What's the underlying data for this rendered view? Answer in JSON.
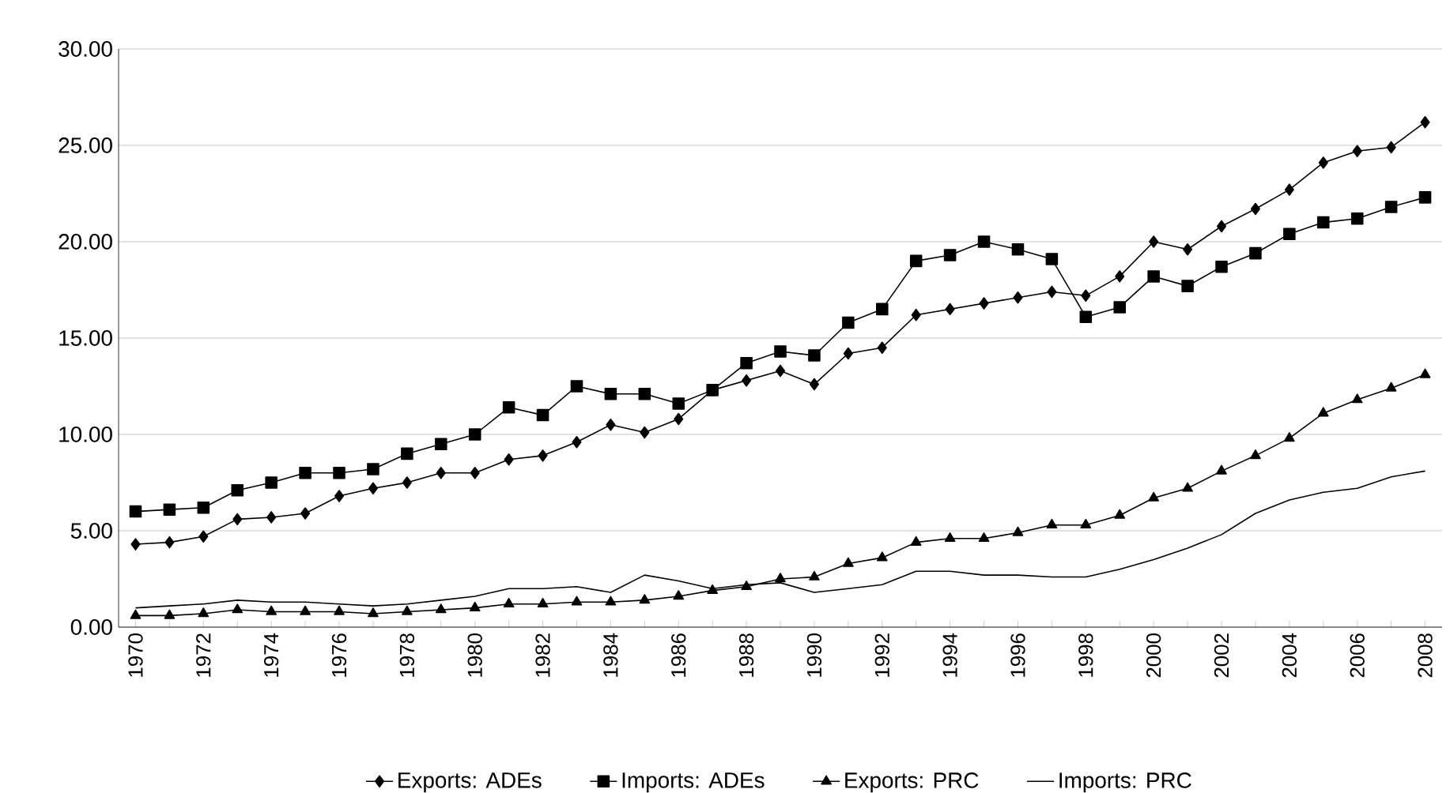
{
  "chart_data": {
    "type": "line",
    "categories": [
      "1970",
      null,
      "1972",
      null,
      "1974",
      null,
      "1976",
      null,
      "1978",
      null,
      "1980",
      null,
      "1982",
      null,
      "1984",
      null,
      "1986",
      null,
      "1988",
      null,
      "1990",
      null,
      "1992",
      null,
      "1994",
      null,
      "1996",
      null,
      "1998",
      null,
      "2000",
      null,
      "2002",
      null,
      "2004",
      null,
      "2006",
      null,
      "2008"
    ],
    "series": [
      {
        "name": "Exports: ADEs",
        "color": "#000000",
        "marker": "diamond",
        "values": [
          4.3,
          4.4,
          4.7,
          5.6,
          5.7,
          5.9,
          6.8,
          7.2,
          7.5,
          8.0,
          8.0,
          8.7,
          8.9,
          9.6,
          10.5,
          10.1,
          10.8,
          12.3,
          12.8,
          13.3,
          12.6,
          14.2,
          14.5,
          16.2,
          16.5,
          16.8,
          17.1,
          17.4,
          17.2,
          18.2,
          20.0,
          19.6,
          20.8,
          21.7,
          22.7,
          24.1,
          24.7,
          24.9,
          26.2
        ]
      },
      {
        "name": "Imports: ADEs",
        "color": "#000000",
        "marker": "square",
        "values": [
          6.0,
          6.1,
          6.2,
          7.1,
          7.5,
          8.0,
          8.0,
          8.2,
          9.0,
          9.5,
          10.0,
          11.4,
          11.0,
          12.5,
          12.1,
          12.1,
          11.6,
          12.3,
          13.7,
          14.3,
          14.1,
          15.8,
          16.5,
          19.0,
          19.3,
          20.0,
          19.6,
          19.1,
          16.1,
          16.6,
          18.2,
          17.7,
          18.7,
          19.4,
          20.4,
          21.0,
          21.2,
          21.8,
          22.3
        ]
      },
      {
        "name": "Exports: PRC",
        "color": "#000000",
        "marker": "triangle",
        "values": [
          0.6,
          0.6,
          0.7,
          0.9,
          0.8,
          0.8,
          0.8,
          0.7,
          0.8,
          0.9,
          1.0,
          1.2,
          1.2,
          1.3,
          1.3,
          1.4,
          1.6,
          1.9,
          2.1,
          2.5,
          2.6,
          3.3,
          3.6,
          4.4,
          4.6,
          4.6,
          4.9,
          5.3,
          5.3,
          5.8,
          6.7,
          7.2,
          8.1,
          8.9,
          9.8,
          11.1,
          11.8,
          12.4,
          13.1
        ]
      },
      {
        "name": "Imports: PRC",
        "color": "#000000",
        "marker": "none",
        "values": [
          1.0,
          1.1,
          1.2,
          1.4,
          1.3,
          1.3,
          1.2,
          1.1,
          1.2,
          1.4,
          1.6,
          2.0,
          2.0,
          2.1,
          1.8,
          2.7,
          2.4,
          2.0,
          2.2,
          2.3,
          1.8,
          2.0,
          2.2,
          2.9,
          2.9,
          2.7,
          2.7,
          2.6,
          2.6,
          3.0,
          3.5,
          4.1,
          4.8,
          5.9,
          6.6,
          7.0,
          7.2,
          7.8,
          8.1
        ]
      }
    ],
    "ylim": [
      0,
      30
    ],
    "yticks": [
      {
        "value": 0,
        "label": "0.00"
      },
      {
        "value": 5,
        "label": "5.00"
      },
      {
        "value": 10,
        "label": "10.00"
      },
      {
        "value": 15,
        "label": "15.00"
      },
      {
        "value": 20,
        "label": "20.00"
      },
      {
        "value": 25,
        "label": "25.00"
      },
      {
        "value": 30,
        "label": "30.00"
      }
    ],
    "grid": "y",
    "legend": "bottom",
    "line_style": "solid"
  }
}
